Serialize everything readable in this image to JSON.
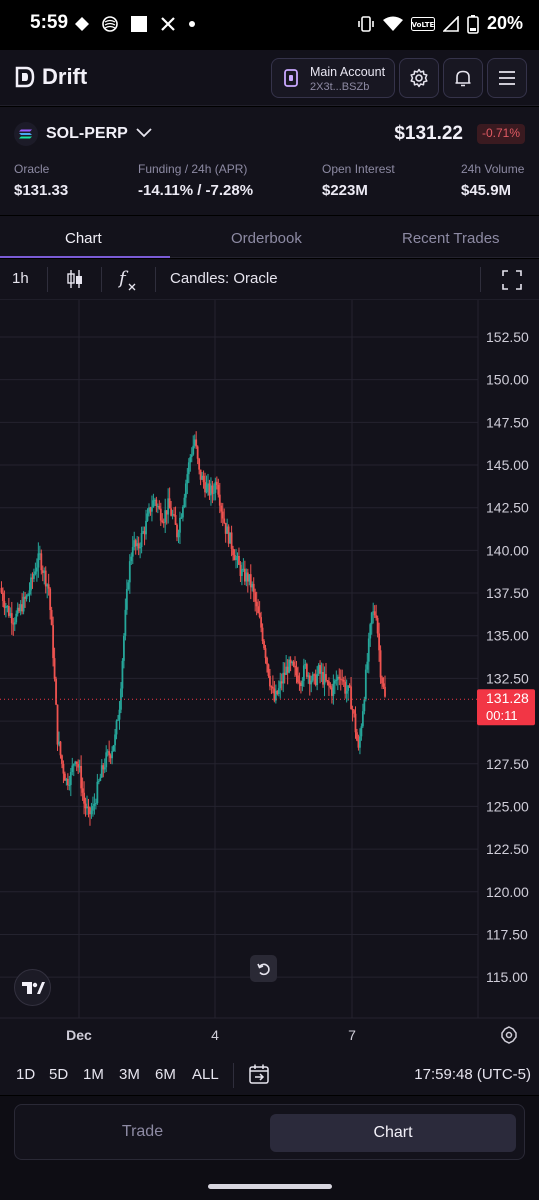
{
  "status_bar": {
    "time": "5:59",
    "battery": "20%",
    "network": "VoLTE"
  },
  "header": {
    "brand": "Drift",
    "account_name": "Main Account",
    "account_address": "2X3t...BSZb",
    "icons": [
      "wallet-icon",
      "gear-icon",
      "bell-icon",
      "menu-icon"
    ]
  },
  "market": {
    "symbol": "SOL-PERP",
    "price": "$131.22",
    "change": "-0.71%",
    "stats": [
      {
        "label": "Oracle",
        "value": "$131.33"
      },
      {
        "label": "Funding / 24h (APR)",
        "value": "-14.11% / -7.28%"
      },
      {
        "label": "Open Interest",
        "value": "$223M"
      },
      {
        "label": "24h Volume",
        "value": "$45.9M"
      }
    ]
  },
  "tabs": [
    "Chart",
    "Orderbook",
    "Recent Trades"
  ],
  "active_tab": "Chart",
  "toolbar": {
    "interval": "1h",
    "candles_label": "Candles: Oracle",
    "icons": [
      "candlestick-icon",
      "function-icon",
      "fullscreen-icon"
    ]
  },
  "chart_data": {
    "type": "candlestick",
    "y_ticks": [
      "152.50",
      "150.00",
      "147.50",
      "145.00",
      "142.50",
      "140.00",
      "137.50",
      "135.00",
      "132.50",
      "127.50",
      "125.00",
      "122.50",
      "120.00",
      "117.50",
      "115.00"
    ],
    "x_ticks": [
      "Dec",
      "4",
      "7"
    ],
    "last_price": "131.28",
    "countdown": "00:11",
    "ylim": [
      113.5,
      153.8
    ],
    "colors": {
      "up": "#26a69a",
      "down": "#ef5350",
      "price_label": "#f23645"
    },
    "trend": [
      137.8,
      137,
      136.4,
      136,
      136.2,
      136.8,
      137.2,
      138,
      139,
      139.6,
      138.6,
      137.8,
      134,
      129,
      127.5,
      126.5,
      126.8,
      128,
      127,
      125.2,
      124.5,
      124.8,
      126,
      127,
      127.8,
      128.2,
      129,
      131,
      135,
      138.5,
      140.5,
      140,
      140.8,
      141.5,
      142.5,
      143,
      142.3,
      142,
      142.6,
      142,
      141,
      142.3,
      144,
      145.5,
      146.5,
      144.5,
      144,
      143.5,
      143.4,
      144.2,
      142.5,
      141.3,
      140.6,
      139.8,
      139,
      138.5,
      138.4,
      137.8,
      136.5,
      135.5,
      134,
      132.4,
      131.2,
      131.8,
      132.6,
      133.2,
      133.1,
      132.7,
      132.5,
      133.1,
      132.6,
      132.3,
      132.9,
      132.5,
      132.1,
      131.8,
      132.4,
      132.8,
      131.9,
      131.6,
      130.2,
      128.2,
      130.8,
      133.5,
      136.2,
      136.4,
      133,
      131.3
    ]
  },
  "range_bar": {
    "ranges": [
      "1D",
      "5D",
      "1M",
      "3M",
      "6M",
      "ALL"
    ],
    "clock": "17:59:48 (UTC-5)"
  },
  "bottom_toggle": {
    "trade_label": "Trade",
    "chart_label": "Chart"
  }
}
